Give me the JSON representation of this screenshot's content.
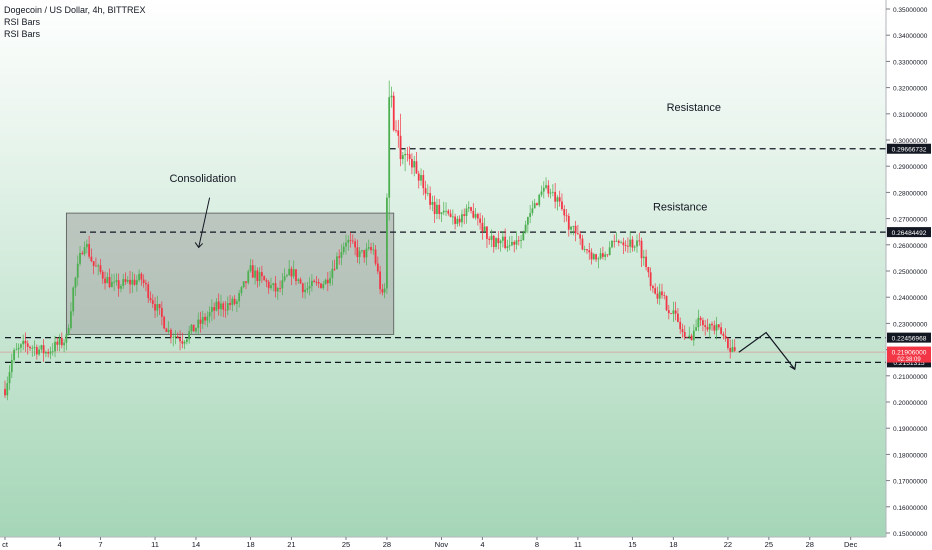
{
  "legend": {
    "symbol_line": "Dogecoin / US Dollar, 4h, BITTREX",
    "indicator_1": "RSI Bars",
    "indicator_2": "RSI Bars"
  },
  "colors": {
    "bull": "#4caf50",
    "bear": "#f23645",
    "background_top": "#ffffff",
    "background_bottom": "#a5d6b7",
    "consolidation_box": "#9e9e9e"
  },
  "chart_data": {
    "type": "candlestick",
    "symbol": "Dogecoin / US Dollar",
    "interval": "4h",
    "exchange": "BITTREX",
    "ylim": [
      0.15,
      0.35
    ],
    "grid": false,
    "price_ticks": [
      "0.35000000",
      "0.34000000",
      "0.33000000",
      "0.32000000",
      "0.31000000",
      "0.30000000",
      "0.29000000",
      "0.28000000",
      "0.27000000",
      "0.26000000",
      "0.25000000",
      "0.24000000",
      "0.23000000",
      "0.22000000",
      "0.21000000",
      "0.20000000",
      "0.19000000",
      "0.18000000",
      "0.17000000",
      "0.16000000",
      "0.15000000"
    ],
    "time_ticks": [
      {
        "label": "ct",
        "day": 0
      },
      {
        "label": "4",
        "day": 4
      },
      {
        "label": "7",
        "day": 7
      },
      {
        "label": "11",
        "day": 11
      },
      {
        "label": "14",
        "day": 14
      },
      {
        "label": "18",
        "day": 18
      },
      {
        "label": "21",
        "day": 21
      },
      {
        "label": "25",
        "day": 25
      },
      {
        "label": "28",
        "day": 28
      },
      {
        "label": "Nov",
        "day": 32
      },
      {
        "label": "4",
        "day": 35
      },
      {
        "label": "8",
        "day": 39
      },
      {
        "label": "11",
        "day": 42
      },
      {
        "label": "15",
        "day": 46
      },
      {
        "label": "18",
        "day": 49
      },
      {
        "label": "22",
        "day": 53
      },
      {
        "label": "25",
        "day": 56
      },
      {
        "label": "28",
        "day": 59
      },
      {
        "label": "Dec",
        "day": 62
      }
    ],
    "price_path": [
      [
        0,
        0.205
      ],
      [
        0.6,
        0.218
      ],
      [
        1.5,
        0.222
      ],
      [
        3,
        0.219
      ],
      [
        4.5,
        0.224
      ],
      [
        5,
        0.243
      ],
      [
        5.8,
        0.262
      ],
      [
        6.5,
        0.252
      ],
      [
        8,
        0.244
      ],
      [
        10,
        0.247
      ],
      [
        11,
        0.237
      ],
      [
        12,
        0.227
      ],
      [
        13,
        0.224
      ],
      [
        14.3,
        0.23
      ],
      [
        15.5,
        0.236
      ],
      [
        17,
        0.238
      ],
      [
        18,
        0.25
      ],
      [
        19,
        0.246
      ],
      [
        20,
        0.242
      ],
      [
        21,
        0.25
      ],
      [
        22,
        0.243
      ],
      [
        23.5,
        0.246
      ],
      [
        25,
        0.262
      ],
      [
        26,
        0.256
      ],
      [
        27,
        0.258
      ],
      [
        27.8,
        0.236
      ],
      [
        28.2,
        0.318
      ],
      [
        28.8,
        0.3
      ],
      [
        30,
        0.29
      ],
      [
        31.5,
        0.274
      ],
      [
        33,
        0.27
      ],
      [
        34.5,
        0.273
      ],
      [
        35.5,
        0.262
      ],
      [
        37,
        0.26
      ],
      [
        38,
        0.265
      ],
      [
        39.5,
        0.283
      ],
      [
        40.5,
        0.276
      ],
      [
        42,
        0.262
      ],
      [
        43.5,
        0.254
      ],
      [
        45,
        0.262
      ],
      [
        46.5,
        0.26
      ],
      [
        47.5,
        0.244
      ],
      [
        49,
        0.234
      ],
      [
        50,
        0.223
      ],
      [
        51,
        0.232
      ],
      [
        52.5,
        0.226
      ],
      [
        53.5,
        0.219
      ]
    ],
    "levels": [
      {
        "price": 0.29666732,
        "label": "0.29666732",
        "start_day": 28.2
      },
      {
        "price": 0.26484492,
        "label": "0.26484492",
        "start_day": 5.5
      },
      {
        "price": 0.22456968,
        "label": "0.22456968",
        "start_day": 0
      },
      {
        "price": 0.2151315,
        "label": "0.2151315",
        "start_day": 0
      }
    ],
    "current_price": {
      "price": 0.21906,
      "label": "0.21906000",
      "countdown": "02:38:09"
    },
    "annotations": [
      {
        "text": "Consolidation",
        "day": 14.5,
        "price": 0.284
      },
      {
        "text": "Resistance",
        "day": 50.5,
        "price": 0.311
      },
      {
        "text": "Resistance",
        "day": 49.5,
        "price": 0.273
      }
    ],
    "consolidation_box": {
      "x0_day": 4.5,
      "x1_day": 28.5,
      "y0_price": 0.2258,
      "y1_price": 0.2721
    },
    "consolidation_arrow": {
      "from_day": 15,
      "from_price": 0.278,
      "to_day": 14.2,
      "to_price": 0.259
    },
    "projection_path": [
      [
        53.8,
        0.219
      ],
      [
        55.8,
        0.2265
      ],
      [
        57.9,
        0.2125
      ]
    ]
  }
}
